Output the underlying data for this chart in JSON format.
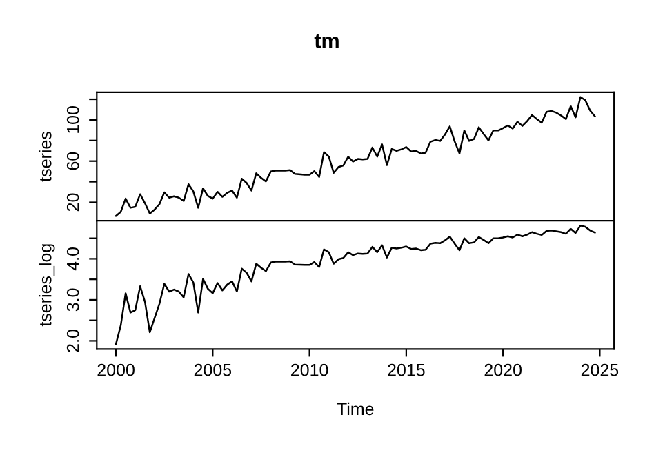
{
  "chart_data": [
    {
      "type": "line",
      "title": "tm",
      "ylabel": "tseries",
      "tick_labels": "y",
      "xlim": [
        1999.01,
        2025.74
      ],
      "ylim": [
        2.2,
        126.8
      ],
      "yticks": [
        20,
        {
          "value": 40,
          "label": null
        },
        60,
        {
          "value": 80,
          "label": null
        },
        100,
        {
          "value": 120,
          "label": null
        }
      ],
      "x": [
        2000,
        2000.25,
        2000.5,
        2000.75,
        2001,
        2001.25,
        2001.5,
        2001.75,
        2002,
        2002.25,
        2002.5,
        2002.75,
        2003,
        2003.25,
        2003.5,
        2003.75,
        2004,
        2004.25,
        2004.5,
        2004.75,
        2005,
        2005.25,
        2005.5,
        2005.75,
        2006,
        2006.25,
        2006.5,
        2006.75,
        2007,
        2007.25,
        2007.5,
        2007.75,
        2008,
        2008.25,
        2008.75,
        2009,
        2009.25,
        2009.75,
        2010,
        2010.25,
        2010.5,
        2010.75,
        2011,
        2011.25,
        2011.5,
        2011.75,
        2012,
        2012.25,
        2012.5,
        2012.75,
        2013,
        2013.25,
        2013.5,
        2013.75,
        2014,
        2014.25,
        2014.5,
        2014.75,
        2015,
        2015.25,
        2015.5,
        2015.75,
        2016,
        2016.25,
        2016.5,
        2016.75,
        2017,
        2017.25,
        2017.5,
        2017.75,
        2018,
        2018.25,
        2018.5,
        2018.75,
        2019,
        2019.25,
        2019.5,
        2019.75,
        2020,
        2020.25,
        2020.5,
        2020.75,
        2021,
        2021.25,
        2021.5,
        2021.75,
        2022,
        2022.25,
        2022.5,
        2022.75,
        2023,
        2023.25,
        2023.5,
        2023.75,
        2024,
        2024.25,
        2024.5,
        2024.75
      ],
      "series": [
        {
          "color": "#000000",
          "values": [
            6.8,
            10.8,
            23.6,
            14.7,
            15.7,
            27.9,
            19.1,
            9.1,
            13,
            18.3,
            29.7,
            24.5,
            25.8,
            24.5,
            21.3,
            37.6,
            30.5,
            14.7,
            33.6,
            26.2,
            23.6,
            30.2,
            25.3,
            29.2,
            31.4,
            24.5,
            42.9,
            38.9,
            31.4,
            48.2,
            43.7,
            40.3,
            49.9,
            50.8,
            50.8,
            51.2,
            47.6,
            46.8,
            46.8,
            50.3,
            44.6,
            68.7,
            64.3,
            48.6,
            54.3,
            55.7,
            64.3,
            59.5,
            62.1,
            61.7,
            62.1,
            73.2,
            64.3,
            76.2,
            56.1,
            71.8,
            70,
            71.4,
            73.6,
            69.3,
            70,
            67.4,
            68.2,
            78.8,
            80.5,
            79.6,
            85.8,
            93.7,
            79.2,
            67.4,
            89.7,
            79.6,
            81.4,
            92.8,
            86.3,
            80.1,
            89.7,
            89.7,
            92,
            94.6,
            91.6,
            98.2,
            94.2,
            98.9,
            104.7,
            100.8,
            97.2,
            107.8,
            108.7,
            107,
            104.3,
            100.8,
            113.4,
            102.5,
            122.2,
            119.2,
            109.1,
            103.4
          ]
        }
      ]
    },
    {
      "type": "line",
      "xlabel": "Time",
      "ylabel": "tseries_log",
      "xlim": [
        1999.01,
        2025.74
      ],
      "xticks": [
        2000,
        2005,
        2010,
        2015,
        2020,
        2025
      ],
      "ylim": [
        1.8,
        4.93
      ],
      "yticks": [
        {
          "value": 2.0,
          "label": "2.0"
        },
        {
          "value": 2.5,
          "label": null
        },
        {
          "value": 3.0,
          "label": "3.0"
        },
        {
          "value": 3.5,
          "label": null
        },
        {
          "value": 4.0,
          "label": "4.0"
        },
        {
          "value": 4.5,
          "label": null
        }
      ],
      "x": [
        2000,
        2000.25,
        2000.5,
        2000.75,
        2001,
        2001.25,
        2001.5,
        2001.75,
        2002,
        2002.25,
        2002.5,
        2002.75,
        2003,
        2003.25,
        2003.5,
        2003.75,
        2004,
        2004.25,
        2004.5,
        2004.75,
        2005,
        2005.25,
        2005.5,
        2005.75,
        2006,
        2006.25,
        2006.5,
        2006.75,
        2007,
        2007.25,
        2007.5,
        2007.75,
        2008,
        2008.25,
        2008.75,
        2009,
        2009.25,
        2009.75,
        2010,
        2010.25,
        2010.5,
        2010.75,
        2011,
        2011.25,
        2011.5,
        2011.75,
        2012,
        2012.25,
        2012.5,
        2012.75,
        2013,
        2013.25,
        2013.5,
        2013.75,
        2014,
        2014.25,
        2014.5,
        2014.75,
        2015,
        2015.25,
        2015.5,
        2015.75,
        2016,
        2016.25,
        2016.5,
        2016.75,
        2017,
        2017.25,
        2017.5,
        2017.75,
        2018,
        2018.25,
        2018.5,
        2018.75,
        2019,
        2019.25,
        2019.5,
        2019.75,
        2020,
        2020.25,
        2020.5,
        2020.75,
        2021,
        2021.25,
        2021.5,
        2021.75,
        2022,
        2022.25,
        2022.5,
        2022.75,
        2023,
        2023.25,
        2023.5,
        2023.75,
        2024,
        2024.25,
        2024.5,
        2024.75
      ],
      "series": [
        {
          "color": "#000000",
          "values": [
            1.92,
            2.38,
            3.16,
            2.69,
            2.75,
            3.33,
            2.95,
            2.21,
            2.56,
            2.91,
            3.39,
            3.2,
            3.25,
            3.2,
            3.06,
            3.63,
            3.42,
            2.69,
            3.51,
            3.27,
            3.16,
            3.41,
            3.23,
            3.37,
            3.45,
            3.2,
            3.76,
            3.66,
            3.45,
            3.88,
            3.78,
            3.7,
            3.91,
            3.93,
            3.93,
            3.94,
            3.86,
            3.85,
            3.85,
            3.92,
            3.8,
            4.23,
            4.16,
            3.88,
            3.99,
            4.02,
            4.16,
            4.09,
            4.13,
            4.12,
            4.13,
            4.29,
            4.16,
            4.33,
            4.03,
            4.27,
            4.25,
            4.27,
            4.3,
            4.24,
            4.25,
            4.21,
            4.22,
            4.37,
            4.39,
            4.38,
            4.45,
            4.54,
            4.37,
            4.21,
            4.5,
            4.38,
            4.4,
            4.53,
            4.46,
            4.38,
            4.5,
            4.5,
            4.52,
            4.55,
            4.52,
            4.59,
            4.55,
            4.59,
            4.65,
            4.61,
            4.58,
            4.68,
            4.69,
            4.67,
            4.65,
            4.61,
            4.73,
            4.63,
            4.81,
            4.78,
            4.69,
            4.64
          ]
        }
      ]
    }
  ]
}
